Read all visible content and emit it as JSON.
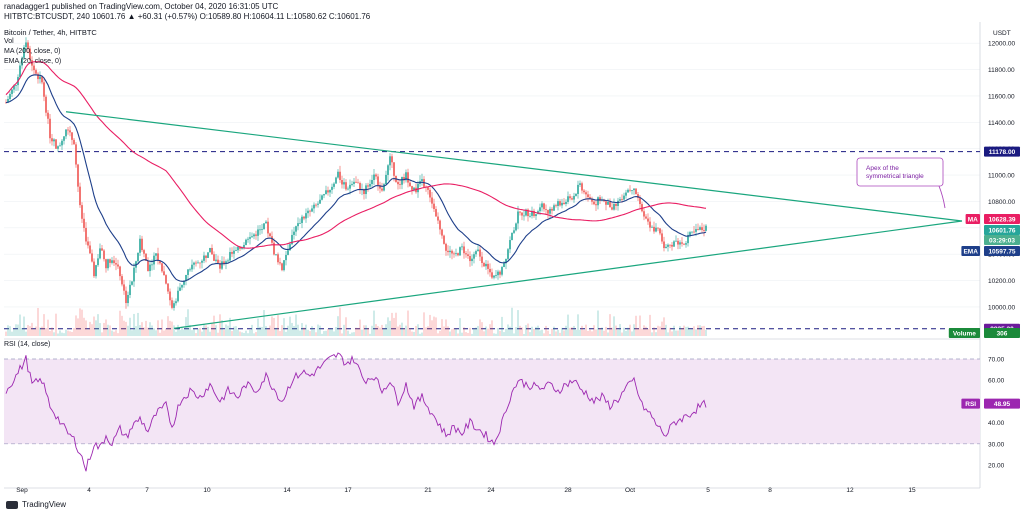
{
  "header": {
    "user_line": "ranadagger1 published on TradingView.com, October 04, 2020 16:31:05 UTC",
    "ohlc_line": "HITBTC:BTCUSDT, 240  10601.76 ▲ +60.31 (+0.57%) O:10589.80 H:10604.11 L:10580.62 C:10601.76",
    "symbol_title": "Bitcoin / Tether, 4h, HITBTC",
    "ind_vol": "Vol",
    "ind_ma": "MA (200, close, 0)",
    "ind_ema": "EMA (20, close, 0)",
    "rsi_label": "RSI (14, close)",
    "currency": "USDT"
  },
  "brand": {
    "name": "TradingView",
    "icon": "tradingview-logo-icon"
  },
  "colors": {
    "up": "#26a69a",
    "down": "#ef5350",
    "ma": "#e91e63",
    "ema": "#1e3f8a",
    "trend": "#1aa67e",
    "dashed": "#1a1a80",
    "rsi": "#9c27b0",
    "rsi_band": "#f3e5f5"
  },
  "annotation": "Apex of the\nsymmetrical triangle",
  "chart_data": {
    "type": "candlestick",
    "x_axis": {
      "ticks": [
        "Sep",
        "4",
        "7",
        "10",
        "14",
        "17",
        "21",
        "24",
        "28",
        "Oct",
        "5",
        "8",
        "12",
        "15"
      ]
    },
    "price_axis": {
      "ticks": [
        12000,
        11800,
        11600,
        11400,
        11200,
        11000,
        10800,
        10600,
        10400,
        10200,
        10000
      ],
      "ylim": [
        9780,
        12100
      ]
    },
    "rsi_axis": {
      "ticks": [
        70,
        60,
        50,
        40,
        30,
        20
      ],
      "ylim": [
        12,
        78
      ],
      "band": [
        30,
        70
      ]
    },
    "levels": [
      {
        "label": "11178.00",
        "value": 11178
      },
      {
        "label": "9835.20",
        "value": 9835
      }
    ],
    "tags": [
      {
        "label": "MA",
        "value": "10628.39",
        "color": "#e91e63"
      },
      {
        "label": "",
        "value": "10601.76",
        "color": "#26a69a"
      },
      {
        "label": "",
        "value": "03:29:03",
        "color": "#26a69a"
      },
      {
        "label": "EMA",
        "value": "10597.75",
        "color": "#1e3f8a"
      },
      {
        "label": "Volume",
        "value": "306",
        "color": "#26a69a"
      },
      {
        "label": "RSI",
        "value": "48.95",
        "color": "#9c27b0"
      }
    ],
    "anchors": [
      [
        0,
        11550
      ],
      [
        5,
        11700
      ],
      [
        10,
        12020
      ],
      [
        13,
        11820
      ],
      [
        18,
        11700
      ],
      [
        22,
        11300
      ],
      [
        26,
        11200
      ],
      [
        30,
        11350
      ],
      [
        34,
        11250
      ],
      [
        37,
        10750
      ],
      [
        40,
        10520
      ],
      [
        44,
        10250
      ],
      [
        47,
        10450
      ],
      [
        50,
        10320
      ],
      [
        53,
        10380
      ],
      [
        57,
        10250
      ],
      [
        60,
        10050
      ],
      [
        63,
        10200
      ],
      [
        67,
        10500
      ],
      [
        71,
        10300
      ],
      [
        75,
        10400
      ],
      [
        80,
        10200
      ],
      [
        83,
        9980
      ],
      [
        87,
        10150
      ],
      [
        92,
        10300
      ],
      [
        97,
        10350
      ],
      [
        102,
        10420
      ],
      [
        107,
        10300
      ],
      [
        111,
        10380
      ],
      [
        116,
        10430
      ],
      [
        120,
        10500
      ],
      [
        125,
        10560
      ],
      [
        130,
        10620
      ],
      [
        134,
        10420
      ],
      [
        138,
        10300
      ],
      [
        143,
        10550
      ],
      [
        148,
        10680
      ],
      [
        152,
        10720
      ],
      [
        157,
        10800
      ],
      [
        162,
        10900
      ],
      [
        166,
        11000
      ],
      [
        170,
        10900
      ],
      [
        174,
        10950
      ],
      [
        179,
        10880
      ],
      [
        184,
        11000
      ],
      [
        188,
        10900
      ],
      [
        192,
        11120
      ],
      [
        196,
        10920
      ],
      [
        200,
        11000
      ],
      [
        204,
        10880
      ],
      [
        208,
        10950
      ],
      [
        212,
        10850
      ],
      [
        216,
        10650
      ],
      [
        220,
        10450
      ],
      [
        224,
        10380
      ],
      [
        228,
        10450
      ],
      [
        232,
        10350
      ],
      [
        236,
        10420
      ],
      [
        240,
        10300
      ],
      [
        244,
        10220
      ],
      [
        248,
        10280
      ],
      [
        252,
        10500
      ],
      [
        256,
        10700
      ],
      [
        260,
        10720
      ],
      [
        264,
        10700
      ],
      [
        268,
        10760
      ],
      [
        272,
        10720
      ],
      [
        276,
        10780
      ],
      [
        280,
        10800
      ],
      [
        284,
        10850
      ],
      [
        287,
        10930
      ],
      [
        290,
        10850
      ],
      [
        294,
        10780
      ],
      [
        298,
        10830
      ],
      [
        302,
        10750
      ],
      [
        306,
        10800
      ],
      [
        310,
        10880
      ],
      [
        314,
        10920
      ],
      [
        318,
        10700
      ],
      [
        322,
        10600
      ],
      [
        326,
        10580
      ],
      [
        330,
        10430
      ],
      [
        334,
        10500
      ],
      [
        338,
        10480
      ],
      [
        342,
        10540
      ],
      [
        346,
        10580
      ],
      [
        350,
        10601
      ]
    ],
    "rsi_anchors": [
      [
        0,
        55
      ],
      [
        5,
        62
      ],
      [
        10,
        70
      ],
      [
        13,
        58
      ],
      [
        18,
        60
      ],
      [
        22,
        48
      ],
      [
        26,
        42
      ],
      [
        30,
        36
      ],
      [
        34,
        32
      ],
      [
        37,
        26
      ],
      [
        40,
        18
      ],
      [
        44,
        30
      ],
      [
        47,
        28
      ],
      [
        50,
        34
      ],
      [
        53,
        30
      ],
      [
        57,
        37
      ],
      [
        60,
        33
      ],
      [
        63,
        38
      ],
      [
        67,
        42
      ],
      [
        71,
        36
      ],
      [
        75,
        44
      ],
      [
        80,
        48
      ],
      [
        83,
        38
      ],
      [
        87,
        50
      ],
      [
        92,
        55
      ],
      [
        97,
        52
      ],
      [
        102,
        58
      ],
      [
        107,
        50
      ],
      [
        111,
        55
      ],
      [
        116,
        52
      ],
      [
        120,
        58
      ],
      [
        125,
        55
      ],
      [
        130,
        62
      ],
      [
        134,
        56
      ],
      [
        138,
        50
      ],
      [
        143,
        60
      ],
      [
        148,
        64
      ],
      [
        152,
        62
      ],
      [
        157,
        66
      ],
      [
        162,
        70
      ],
      [
        166,
        72
      ],
      [
        170,
        68
      ],
      [
        174,
        70
      ],
      [
        179,
        60
      ],
      [
        184,
        62
      ],
      [
        188,
        55
      ],
      [
        192,
        60
      ],
      [
        196,
        50
      ],
      [
        200,
        58
      ],
      [
        204,
        48
      ],
      [
        208,
        52
      ],
      [
        212,
        46
      ],
      [
        216,
        40
      ],
      [
        220,
        34
      ],
      [
        224,
        38
      ],
      [
        228,
        35
      ],
      [
        232,
        40
      ],
      [
        236,
        37
      ],
      [
        240,
        34
      ],
      [
        244,
        30
      ],
      [
        248,
        40
      ],
      [
        252,
        52
      ],
      [
        256,
        60
      ],
      [
        260,
        58
      ],
      [
        264,
        57
      ],
      [
        268,
        56
      ],
      [
        272,
        58
      ],
      [
        276,
        55
      ],
      [
        280,
        58
      ],
      [
        284,
        60
      ],
      [
        287,
        56
      ],
      [
        290,
        54
      ],
      [
        294,
        50
      ],
      [
        298,
        52
      ],
      [
        302,
        48
      ],
      [
        306,
        51
      ],
      [
        310,
        56
      ],
      [
        314,
        60
      ],
      [
        318,
        48
      ],
      [
        322,
        44
      ],
      [
        326,
        38
      ],
      [
        330,
        34
      ],
      [
        334,
        40
      ],
      [
        338,
        42
      ],
      [
        342,
        44
      ],
      [
        346,
        47
      ],
      [
        350,
        49
      ]
    ]
  }
}
